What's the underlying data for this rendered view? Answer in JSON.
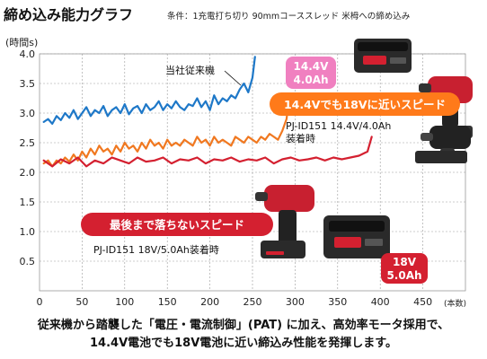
{
  "title": "締め込み能力グラフ",
  "condition": "条件：1充電打ち切り 90mmコーススレッド 米栂への締め込み",
  "colors": {
    "conventional": "#1e78c8",
    "orange": "#f07820",
    "red": "#d42030",
    "grid": "#9a9a9a",
    "pink_badge": "#f080c0",
    "red_badge": "#d42030",
    "orange_banner": "#ff7a1a"
  },
  "badges": {
    "top_line1": "14.4V",
    "top_line2": "4.0Ah",
    "bottom_line1": "18V",
    "bottom_line2": "5.0Ah"
  },
  "banners": {
    "orange": "14.4Vでも18Vに近いスピード",
    "red": "最後まで落ちないスピード"
  },
  "footer": {
    "line1": "従来機から踏襲した「電圧・電流制御」(PAT) に加え、高効率モータ採用で、",
    "line2": "14.4V電池でも18V電池に近い締込み性能を発揮します。"
  },
  "product_icons": [
    "battery-14v-4ah-icon",
    "impact-driver-red-icon",
    "impact-driver-black-icon",
    "impact-driver-red-icon",
    "battery-18v-5ah-icon"
  ],
  "chart_data": {
    "type": "line",
    "ylabel": "(時間s)",
    "xlabel": "(本数)",
    "xlim": [
      0,
      500
    ],
    "ylim": [
      0,
      4.0
    ],
    "x_ticks": [
      0,
      50,
      100,
      150,
      200,
      250,
      300,
      350,
      400,
      450
    ],
    "y_ticks": [
      0.5,
      1.0,
      1.5,
      2.0,
      2.5,
      3.0,
      3.5,
      4.0
    ],
    "grid": true,
    "series": [
      {
        "name": "当社従来機",
        "color_key": "conventional",
        "x": [
          5,
          10,
          15,
          20,
          25,
          30,
          35,
          40,
          45,
          50,
          55,
          60,
          65,
          70,
          75,
          80,
          85,
          90,
          95,
          100,
          105,
          110,
          115,
          120,
          125,
          130,
          135,
          140,
          145,
          150,
          155,
          160,
          165,
          170,
          175,
          180,
          185,
          190,
          195,
          200,
          205,
          210,
          215,
          220,
          225,
          230,
          235,
          240,
          245,
          250,
          253
        ],
        "y": [
          2.85,
          2.9,
          2.82,
          2.95,
          2.88,
          3.0,
          2.92,
          3.05,
          2.9,
          3.0,
          3.1,
          2.95,
          3.05,
          3.0,
          3.12,
          2.95,
          3.05,
          3.1,
          3.0,
          3.15,
          2.98,
          3.08,
          3.12,
          3.0,
          3.15,
          3.05,
          3.1,
          3.2,
          3.05,
          3.15,
          3.08,
          3.2,
          3.1,
          3.05,
          3.15,
          3.12,
          3.25,
          3.1,
          3.2,
          3.05,
          3.3,
          3.15,
          3.25,
          3.2,
          3.3,
          3.25,
          3.4,
          3.5,
          3.35,
          3.6,
          3.95
        ]
      },
      {
        "name": "PJ-ID151 14.4V/4.0Ah 装着時",
        "color_key": "orange",
        "x": [
          5,
          10,
          15,
          20,
          25,
          30,
          35,
          40,
          45,
          50,
          55,
          60,
          65,
          70,
          75,
          80,
          85,
          90,
          95,
          100,
          105,
          110,
          115,
          120,
          125,
          130,
          135,
          140,
          145,
          150,
          155,
          160,
          165,
          170,
          175,
          180,
          185,
          190,
          195,
          200,
          205,
          210,
          215,
          220,
          225,
          230,
          235,
          240,
          245,
          250,
          255,
          260,
          265,
          270,
          275,
          280,
          285,
          290,
          293
        ],
        "y": [
          2.15,
          2.2,
          2.1,
          2.2,
          2.15,
          2.25,
          2.18,
          2.3,
          2.2,
          2.35,
          2.25,
          2.4,
          2.3,
          2.45,
          2.35,
          2.4,
          2.3,
          2.45,
          2.35,
          2.5,
          2.4,
          2.45,
          2.35,
          2.5,
          2.4,
          2.55,
          2.45,
          2.5,
          2.4,
          2.55,
          2.45,
          2.5,
          2.45,
          2.55,
          2.5,
          2.45,
          2.6,
          2.5,
          2.55,
          2.45,
          2.6,
          2.5,
          2.55,
          2.5,
          2.45,
          2.6,
          2.55,
          2.5,
          2.6,
          2.55,
          2.5,
          2.6,
          2.55,
          2.65,
          2.6,
          2.55,
          2.7,
          2.9,
          3.25
        ]
      },
      {
        "name": "PJ-ID151 18V/5.0Ah装着時",
        "color_key": "red",
        "x": [
          5,
          15,
          25,
          35,
          45,
          55,
          65,
          75,
          85,
          95,
          105,
          115,
          125,
          135,
          145,
          155,
          165,
          175,
          185,
          195,
          205,
          215,
          225,
          235,
          245,
          255,
          265,
          275,
          285,
          295,
          305,
          315,
          325,
          335,
          345,
          355,
          365,
          375,
          385,
          390
        ],
        "y": [
          2.2,
          2.1,
          2.22,
          2.15,
          2.25,
          2.1,
          2.2,
          2.15,
          2.25,
          2.2,
          2.15,
          2.25,
          2.18,
          2.2,
          2.25,
          2.15,
          2.22,
          2.2,
          2.25,
          2.15,
          2.22,
          2.2,
          2.25,
          2.18,
          2.22,
          2.2,
          2.25,
          2.15,
          2.22,
          2.25,
          2.2,
          2.22,
          2.25,
          2.2,
          2.25,
          2.22,
          2.25,
          2.28,
          2.35,
          2.6
        ]
      }
    ],
    "annotations": {
      "conventional_label": "当社従来機",
      "pj144_label_line1": "PJ-ID151 14.4V/4.0Ah",
      "pj144_label_line2": "装着時",
      "pj18_label": "PJ-ID151 18V/5.0Ah装着時"
    }
  }
}
